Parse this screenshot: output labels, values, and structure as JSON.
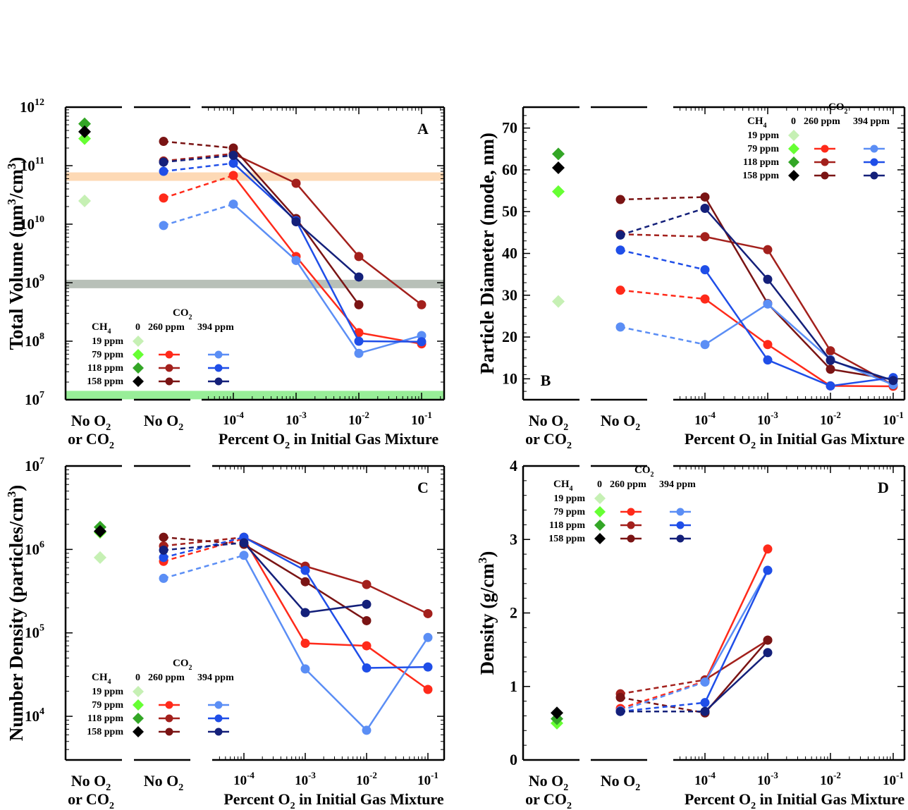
{
  "legend": {
    "co2_title": "CO",
    "co2_sub": "2",
    "ch4_title": "CH",
    "ch4_sub": "4",
    "col_0": "0",
    "col_260": "260 ppm",
    "col_394": "394 ppm",
    "rows": [
      "19 ppm",
      "79 ppm",
      "118 ppm",
      "158 ppm"
    ]
  },
  "x_labels": {
    "no_o2_co2_line1": "No O",
    "no_o2_co2_line2": "or CO",
    "no_o2": "No O",
    "sub2": "2",
    "axis_title_pre": "Percent O",
    "axis_title_post": " in Initial Gas Mixture",
    "ticks": [
      "10",
      "10",
      "10",
      "10"
    ],
    "tick_exps": [
      "-4",
      "-3",
      "-2",
      "-1"
    ]
  },
  "colors": {
    "ch4_19": "#c6f0b4",
    "ch4_79": "#66ff33",
    "ch4_118": "#33a626",
    "ch4_158": "#000000",
    "co2_260_79": "#ff2a1a",
    "co2_260_118": "#a3201c",
    "co2_260_158": "#7a1414",
    "co2_394_79": "#5b8ef5",
    "co2_394_118": "#1f4ee8",
    "co2_394_158": "#14207a"
  },
  "chart_data": [
    {
      "panel": "A",
      "type": "scatter",
      "ylabel_pre": "Total Volume (nm",
      "ylabel_sup1": "3",
      "ylabel_mid": "/cm",
      "ylabel_sup2": "3",
      "ylabel_post": ")",
      "xlabel": "Percent O2 in Initial Gas Mixture",
      "yscale": "log",
      "ylim": [
        10000000.0,
        1000000000000.0
      ],
      "yticks_exp": [
        "7",
        "8",
        "9",
        "10",
        "11",
        "12"
      ],
      "x_positions": [
        "No O2 or CO2",
        "No O2",
        "2e-4",
        "2e-3",
        "2e-2",
        "2e-1"
      ],
      "bands": [
        {
          "value": 65000000000.0,
          "color": "#fdd9b5"
        },
        {
          "value": 950000000.0,
          "color": "#b8c0b8"
        },
        {
          "value": 12000000.0,
          "color": "#98ee98"
        }
      ],
      "no_o2_co2": {
        "19 ppm": 25000000000.0,
        "79 ppm": 290000000000.0,
        "118 ppm": 520000000000.0,
        "158 ppm": 380000000000.0
      },
      "series": [
        {
          "name": "79 ppm CH4 / 260 ppm CO2",
          "values": [
            28000000000.0,
            68000000000.0,
            2800000000.0,
            140000000.0,
            90000000.0
          ]
        },
        {
          "name": "118 ppm CH4 / 260 ppm CO2",
          "values": [
            120000000000.0,
            160000000000.0,
            50000000000.0,
            2800000000.0,
            420000000.0
          ]
        },
        {
          "name": "158 ppm CH4 / 260 ppm CO2",
          "values": [
            260000000000.0,
            200000000000.0,
            12500000000.0,
            420000000.0,
            null
          ]
        },
        {
          "name": "79 ppm CH4 / 394 ppm CO2",
          "values": [
            9500000000.0,
            22000000000.0,
            2400000000.0,
            62000000.0,
            125000000.0
          ]
        },
        {
          "name": "118 ppm CH4 / 394 ppm CO2",
          "values": [
            80000000000.0,
            110000000000.0,
            11500000000.0,
            100000000.0,
            98000000.0
          ]
        },
        {
          "name": "158 ppm CH4 / 394 ppm CO2",
          "values": [
            115000000000.0,
            150000000000.0,
            11000000000.0,
            1250000000.0,
            null
          ]
        }
      ]
    },
    {
      "panel": "B",
      "type": "scatter",
      "ylabel": "Particle Diameter (mode, nm)",
      "xlabel": "Percent O2 in Initial Gas Mixture",
      "yscale": "linear",
      "ylim": [
        5,
        75
      ],
      "yticks": [
        "10",
        "20",
        "30",
        "40",
        "50",
        "60",
        "70"
      ],
      "x_positions": [
        "No O2 or CO2",
        "No O2",
        "2e-4",
        "2e-3",
        "2e-2",
        "2e-1"
      ],
      "no_o2_co2": {
        "19 ppm": 28.5,
        "79 ppm": 54.8,
        "118 ppm": 63.8,
        "158 ppm": 60.5
      },
      "series": [
        {
          "name": "79 ppm CH4 / 260 ppm CO2",
          "values": [
            31.2,
            29.1,
            18.2,
            8.3,
            8.2
          ]
        },
        {
          "name": "118 ppm CH4 / 260 ppm CO2",
          "values": [
            44.6,
            44.0,
            40.9,
            16.7,
            8.5
          ]
        },
        {
          "name": "158 ppm CH4 / 260 ppm CO2",
          "values": [
            52.9,
            53.5,
            28.0,
            12.3,
            9.8
          ]
        },
        {
          "name": "79 ppm CH4 / 394 ppm CO2",
          "values": [
            22.4,
            18.2,
            27.9,
            14.6,
            8.6
          ]
        },
        {
          "name": "118 ppm CH4 / 394 ppm CO2",
          "values": [
            40.8,
            36.1,
            14.5,
            8.3,
            10.3
          ]
        },
        {
          "name": "158 ppm CH4 / 394 ppm CO2",
          "values": [
            44.4,
            50.8,
            33.8,
            14.4,
            9.6
          ]
        }
      ]
    },
    {
      "panel": "C",
      "type": "scatter",
      "ylabel_pre": "Number Density (particles/cm",
      "ylabel_sup1": "3",
      "ylabel_post": ")",
      "xlabel": "Percent O2 in Initial Gas Mixture",
      "yscale": "log",
      "ylim": [
        3000.0,
        10000000.0
      ],
      "yticks_exp": [
        "4",
        "5",
        "6",
        "7"
      ],
      "x_positions": [
        "No O2 or CO2",
        "No O2",
        "2e-4",
        "2e-3",
        "2e-2",
        "2e-1"
      ],
      "no_o2_co2": {
        "19 ppm": 800000.0,
        "79 ppm": 1600000.0,
        "118 ppm": 1850000.0,
        "158 ppm": 1650000.0
      },
      "series": [
        {
          "name": "79 ppm CH4 / 260 ppm CO2",
          "values": [
            720000.0,
            1350000.0,
            75000.0,
            70000.0,
            21000.0
          ]
        },
        {
          "name": "118 ppm CH4 / 260 ppm CO2",
          "values": [
            1100000.0,
            1400000.0,
            630000.0,
            380000.0,
            170000.0
          ]
        },
        {
          "name": "158 ppm CH4 / 260 ppm CO2",
          "values": [
            1400000.0,
            1150000.0,
            410000.0,
            140000.0,
            null
          ]
        },
        {
          "name": "79 ppm CH4 / 394 ppm CO2",
          "values": [
            450000.0,
            850000.0,
            37000.0,
            6800.0,
            88000.0
          ]
        },
        {
          "name": "118 ppm CH4 / 394 ppm CO2",
          "values": [
            800000.0,
            1400000.0,
            560000.0,
            38000.0,
            39000.0
          ]
        },
        {
          "name": "158 ppm CH4 / 394 ppm CO2",
          "values": [
            980000.0,
            1200000.0,
            175000.0,
            220000.0,
            null
          ]
        }
      ]
    },
    {
      "panel": "D",
      "type": "scatter",
      "ylabel_pre": "Density (g/cm",
      "ylabel_sup1": "3",
      "ylabel_post": ")",
      "xlabel": "Percent O2 in Initial Gas Mixture",
      "yscale": "linear",
      "ylim": [
        0,
        4
      ],
      "yticks": [
        "0",
        "1",
        "2",
        "3",
        "4"
      ],
      "x_positions": [
        "No O2 or CO2",
        "No O2",
        "2e-4",
        "2e-3",
        "2e-2",
        "2e-1"
      ],
      "no_o2_co2": {
        "79 ppm": 0.5,
        "118 ppm": 0.56,
        "158 ppm": 0.64
      },
      "series": [
        {
          "name": "79 ppm CH4 / 260 ppm CO2",
          "values": [
            0.7,
            1.07,
            2.87,
            null,
            null
          ]
        },
        {
          "name": "118 ppm CH4 / 260 ppm CO2",
          "values": [
            0.9,
            1.09,
            1.63,
            null,
            null
          ]
        },
        {
          "name": "158 ppm CH4 / 260 ppm CO2",
          "values": [
            0.85,
            0.64,
            1.63,
            null,
            null
          ]
        },
        {
          "name": "79 ppm CH4 / 394 ppm CO2",
          "values": [
            0.67,
            1.06,
            2.58,
            null,
            null
          ]
        },
        {
          "name": "118 ppm CH4 / 394 ppm CO2",
          "values": [
            0.66,
            0.78,
            2.58,
            null,
            null
          ]
        },
        {
          "name": "158 ppm CH4 / 394 ppm CO2",
          "values": [
            0.66,
            0.66,
            1.46,
            null,
            null
          ]
        }
      ]
    }
  ]
}
